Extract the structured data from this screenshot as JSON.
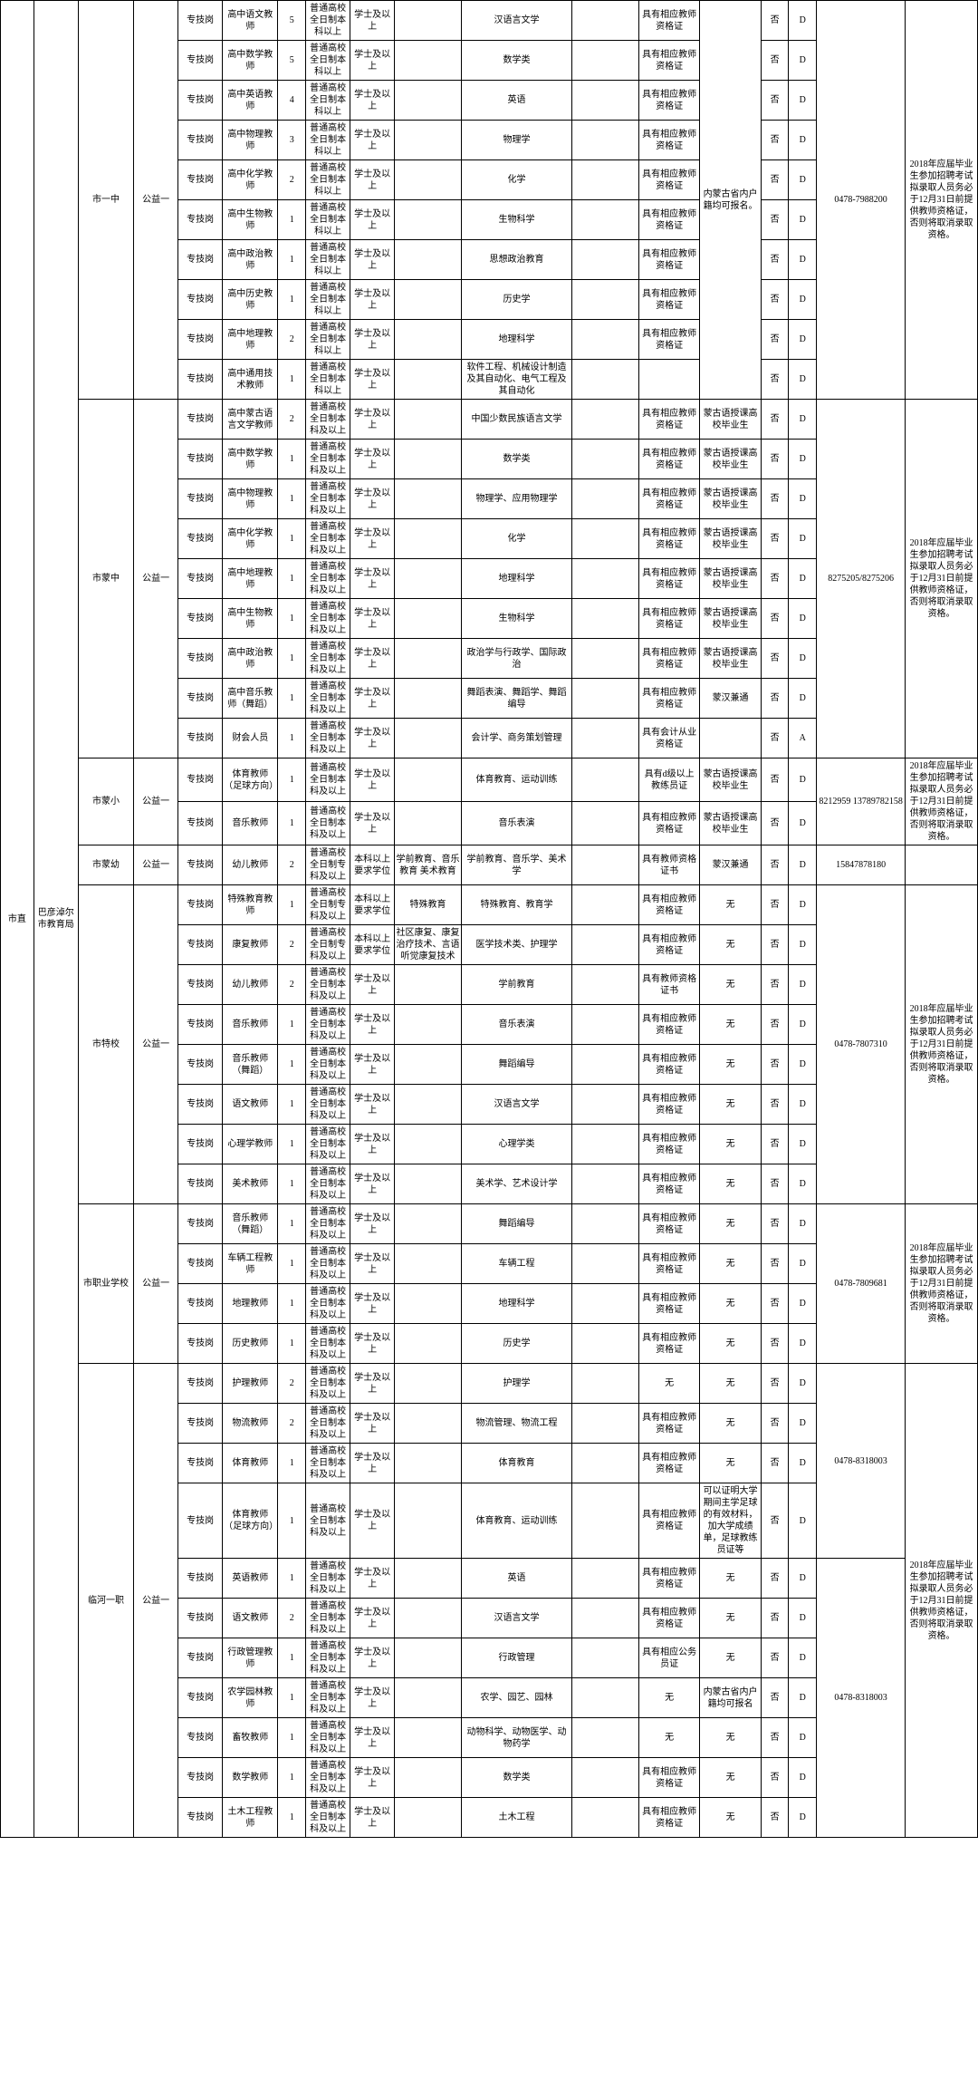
{
  "region_col1": "市直",
  "region_col2": "巴彦淖尔市教育局",
  "units": [
    {
      "unit": "市一中",
      "welfare": "公益一",
      "phone": "0478-7988200",
      "other_shared": "内蒙古省内户籍均可报名。",
      "note": "2018年应届毕业生参加招聘考试拟录取人员务必于12月31日前提供教师资格证，否则将取消录取资格。",
      "rows": [
        {
          "type": "专技岗",
          "pos": "高中语文教师",
          "cnt": "5",
          "edu": "普通高校全日制本科以上",
          "deg": "学士及以上",
          "pre": "",
          "major": "汉语言文学",
          "gap": "",
          "cert": "具有相应教师资格证",
          "yn": "否",
          "cat": "D"
        },
        {
          "type": "专技岗",
          "pos": "高中数学教师",
          "cnt": "5",
          "edu": "普通高校全日制本科以上",
          "deg": "学士及以上",
          "pre": "",
          "major": "数学类",
          "gap": "",
          "cert": "具有相应教师资格证",
          "yn": "否",
          "cat": "D"
        },
        {
          "type": "专技岗",
          "pos": "高中英语教师",
          "cnt": "4",
          "edu": "普通高校全日制本科以上",
          "deg": "学士及以上",
          "pre": "",
          "major": "英语",
          "gap": "",
          "cert": "具有相应教师资格证",
          "yn": "否",
          "cat": "D"
        },
        {
          "type": "专技岗",
          "pos": "高中物理教师",
          "cnt": "3",
          "edu": "普通高校全日制本科以上",
          "deg": "学士及以上",
          "pre": "",
          "major": "物理学",
          "gap": "",
          "cert": "具有相应教师资格证",
          "yn": "否",
          "cat": "D"
        },
        {
          "type": "专技岗",
          "pos": "高中化学教师",
          "cnt": "2",
          "edu": "普通高校全日制本科以上",
          "deg": "学士及以上",
          "pre": "",
          "major": "化学",
          "gap": "",
          "cert": "具有相应教师资格证",
          "yn": "否",
          "cat": "D"
        },
        {
          "type": "专技岗",
          "pos": "高中生物教师",
          "cnt": "1",
          "edu": "普通高校全日制本科以上",
          "deg": "学士及以上",
          "pre": "",
          "major": "生物科学",
          "gap": "",
          "cert": "具有相应教师资格证",
          "yn": "否",
          "cat": "D"
        },
        {
          "type": "专技岗",
          "pos": "高中政治教师",
          "cnt": "1",
          "edu": "普通高校全日制本科以上",
          "deg": "学士及以上",
          "pre": "",
          "major": "思想政治教育",
          "gap": "",
          "cert": "具有相应教师资格证",
          "yn": "否",
          "cat": "D"
        },
        {
          "type": "专技岗",
          "pos": "高中历史教师",
          "cnt": "1",
          "edu": "普通高校全日制本科以上",
          "deg": "学士及以上",
          "pre": "",
          "major": "历史学",
          "gap": "",
          "cert": "具有相应教师资格证",
          "yn": "否",
          "cat": "D"
        },
        {
          "type": "专技岗",
          "pos": "高中地理教师",
          "cnt": "2",
          "edu": "普通高校全日制本科以上",
          "deg": "学士及以上",
          "pre": "",
          "major": "地理科学",
          "gap": "",
          "cert": "具有相应教师资格证",
          "yn": "否",
          "cat": "D"
        },
        {
          "type": "专技岗",
          "pos": "高中通用技术教师",
          "cnt": "1",
          "edu": "普通高校全日制本科以上",
          "deg": "学士及以上",
          "pre": "",
          "major": "软件工程、机械设计制造及其自动化、电气工程及其自动化",
          "gap": "",
          "cert": "",
          "yn": "否",
          "cat": "D"
        }
      ]
    },
    {
      "unit": "市蒙中",
      "welfare": "公益一",
      "phone": "8275205/8275206",
      "note": "2018年应届毕业生参加招聘考试拟录取人员务必于12月31日前提供教师资格证，否则将取消录取资格。",
      "rows": [
        {
          "type": "专技岗",
          "pos": "高中蒙古语言文学教师",
          "cnt": "2",
          "edu": "普通高校全日制本科及以上",
          "deg": "学士及以上",
          "pre": "",
          "major": "中国少数民族语言文学",
          "gap": "",
          "cert": "具有相应教师资格证",
          "other": "蒙古语授课高校毕业生",
          "yn": "否",
          "cat": "D"
        },
        {
          "type": "专技岗",
          "pos": "高中数学教师",
          "cnt": "1",
          "edu": "普通高校全日制本科及以上",
          "deg": "学士及以上",
          "pre": "",
          "major": "数学类",
          "gap": "",
          "cert": "具有相应教师资格证",
          "other": "蒙古语授课高校毕业生",
          "yn": "否",
          "cat": "D"
        },
        {
          "type": "专技岗",
          "pos": "高中物理教师",
          "cnt": "1",
          "edu": "普通高校全日制本科及以上",
          "deg": "学士及以上",
          "pre": "",
          "major": "物理学、应用物理学",
          "gap": "",
          "cert": "具有相应教师资格证",
          "other": "蒙古语授课高校毕业生",
          "yn": "否",
          "cat": "D"
        },
        {
          "type": "专技岗",
          "pos": "高中化学教师",
          "cnt": "1",
          "edu": "普通高校全日制本科及以上",
          "deg": "学士及以上",
          "pre": "",
          "major": "化学",
          "gap": "",
          "cert": "具有相应教师资格证",
          "other": "蒙古语授课高校毕业生",
          "yn": "否",
          "cat": "D"
        },
        {
          "type": "专技岗",
          "pos": "高中地理教师",
          "cnt": "1",
          "edu": "普通高校全日制本科及以上",
          "deg": "学士及以上",
          "pre": "",
          "major": "地理科学",
          "gap": "",
          "cert": "具有相应教师资格证",
          "other": "蒙古语授课高校毕业生",
          "yn": "否",
          "cat": "D"
        },
        {
          "type": "专技岗",
          "pos": "高中生物教师",
          "cnt": "1",
          "edu": "普通高校全日制本科及以上",
          "deg": "学士及以上",
          "pre": "",
          "major": "生物科学",
          "gap": "",
          "cert": "具有相应教师资格证",
          "other": "蒙古语授课高校毕业生",
          "yn": "否",
          "cat": "D"
        },
        {
          "type": "专技岗",
          "pos": "高中政治教师",
          "cnt": "1",
          "edu": "普通高校全日制本科及以上",
          "deg": "学士及以上",
          "pre": "",
          "major": "政治学与行政学、国际政治",
          "gap": "",
          "cert": "具有相应教师资格证",
          "other": "蒙古语授课高校毕业生",
          "yn": "否",
          "cat": "D"
        },
        {
          "type": "专技岗",
          "pos": "高中音乐教师（舞蹈）",
          "cnt": "1",
          "edu": "普通高校全日制本科及以上",
          "deg": "学士及以上",
          "pre": "",
          "major": "舞蹈表演、舞蹈学、舞蹈编导",
          "gap": "",
          "cert": "具有相应教师资格证",
          "other": "蒙汉兼通",
          "yn": "否",
          "cat": "D"
        },
        {
          "type": "专技岗",
          "pos": "财会人员",
          "cnt": "1",
          "edu": "普通高校全日制本科及以上",
          "deg": "学士及以上",
          "pre": "",
          "major": "会计学、商务策划管理",
          "gap": "",
          "cert": "具有会计从业资格证",
          "other": "",
          "yn": "否",
          "cat": "A"
        }
      ]
    },
    {
      "unit": "市蒙小",
      "welfare": "公益一",
      "phone": "8212959\n13789782158",
      "note": "2018年应届毕业生参加招聘考试拟录取人员务必于12月31日前提供教师资格证，否则将取消录取资格。",
      "rows": [
        {
          "type": "专技岗",
          "pos": "体育教师（足球方向）",
          "cnt": "1",
          "edu": "普通高校全日制本科及以上",
          "deg": "学士及以上",
          "pre": "",
          "major": "体育教育、运动训练",
          "gap": "",
          "cert": "具有d级以上教练员证",
          "other": "蒙古语授课高校毕业生",
          "yn": "否",
          "cat": "D"
        },
        {
          "type": "专技岗",
          "pos": "音乐教师",
          "cnt": "1",
          "edu": "普通高校全日制本科及以上",
          "deg": "学士及以上",
          "pre": "",
          "major": "音乐表演",
          "gap": "",
          "cert": "具有相应教师资格证",
          "other": "蒙古语授课高校毕业生",
          "yn": "否",
          "cat": "D"
        }
      ]
    },
    {
      "unit": "市蒙幼",
      "welfare": "公益一",
      "phone": "15847878180",
      "note": "",
      "rows": [
        {
          "type": "专技岗",
          "pos": "幼儿教师",
          "cnt": "2",
          "edu": "普通高校全日制专科及以上",
          "deg": "本科以上要求学位",
          "pre": "学前教育、音乐教育\n美术教育",
          "major": "学前教育、音乐学、美术学",
          "gap": "",
          "cert": "具有教师资格证书",
          "other": "蒙汉兼通",
          "yn": "否",
          "cat": "D"
        }
      ]
    },
    {
      "unit": "市特校",
      "welfare": "公益一",
      "phone": "0478-7807310",
      "note": "2018年应届毕业生参加招聘考试拟录取人员务必于12月31日前提供教师资格证，否则将取消录取资格。",
      "rows": [
        {
          "type": "专技岗",
          "pos": "特殊教育教师",
          "cnt": "1",
          "edu": "普通高校全日制专科及以上",
          "deg": "本科以上要求学位",
          "pre": "特殊教育",
          "major": "特殊教育、教育学",
          "gap": "",
          "cert": "具有相应教师资格证",
          "other": "无",
          "yn": "否",
          "cat": "D"
        },
        {
          "type": "专技岗",
          "pos": "康复教师",
          "cnt": "2",
          "edu": "普通高校全日制专科及以上",
          "deg": "本科以上要求学位",
          "pre": "社区康复、康复治疗技术、言语听觉康复技术",
          "major": "医学技术类、护理学",
          "gap": "",
          "cert": "具有相应教师资格证",
          "other": "无",
          "yn": "否",
          "cat": "D"
        },
        {
          "type": "专技岗",
          "pos": "幼儿教师",
          "cnt": "2",
          "edu": "普通高校全日制本科及以上",
          "deg": "学士及以上",
          "pre": "",
          "major": "学前教育",
          "gap": "",
          "cert": "具有教师资格证书",
          "other": "无",
          "yn": "否",
          "cat": "D"
        },
        {
          "type": "专技岗",
          "pos": "音乐教师",
          "cnt": "1",
          "edu": "普通高校全日制本科及以上",
          "deg": "学士及以上",
          "pre": "",
          "major": "音乐表演",
          "gap": "",
          "cert": "具有相应教师资格证",
          "other": "无",
          "yn": "否",
          "cat": "D"
        },
        {
          "type": "专技岗",
          "pos": "音乐教师（舞蹈）",
          "cnt": "1",
          "edu": "普通高校全日制本科及以上",
          "deg": "学士及以上",
          "pre": "",
          "major": "舞蹈编导",
          "gap": "",
          "cert": "具有相应教师资格证",
          "other": "无",
          "yn": "否",
          "cat": "D"
        },
        {
          "type": "专技岗",
          "pos": "语文教师",
          "cnt": "1",
          "edu": "普通高校全日制本科及以上",
          "deg": "学士及以上",
          "pre": "",
          "major": "汉语言文学",
          "gap": "",
          "cert": "具有相应教师资格证",
          "other": "无",
          "yn": "否",
          "cat": "D"
        },
        {
          "type": "专技岗",
          "pos": "心理学教师",
          "cnt": "1",
          "edu": "普通高校全日制本科及以上",
          "deg": "学士及以上",
          "pre": "",
          "major": "心理学类",
          "gap": "",
          "cert": "具有相应教师资格证",
          "other": "无",
          "yn": "否",
          "cat": "D"
        },
        {
          "type": "专技岗",
          "pos": "美术教师",
          "cnt": "1",
          "edu": "普通高校全日制本科及以上",
          "deg": "学士及以上",
          "pre": "",
          "major": "美术学、艺术设计学",
          "gap": "",
          "cert": "具有相应教师资格证",
          "other": "无",
          "yn": "否",
          "cat": "D"
        }
      ]
    },
    {
      "unit": "市职业学校",
      "welfare": "公益一",
      "phone": "0478-7809681",
      "note": "2018年应届毕业生参加招聘考试拟录取人员务必于12月31日前提供教师资格证，否则将取消录取资格。",
      "rows": [
        {
          "type": "专技岗",
          "pos": "音乐教师（舞蹈）",
          "cnt": "1",
          "edu": "普通高校全日制本科及以上",
          "deg": "学士及以上",
          "pre": "",
          "major": "舞蹈编导",
          "gap": "",
          "cert": "具有相应教师资格证",
          "other": "无",
          "yn": "否",
          "cat": "D"
        },
        {
          "type": "专技岗",
          "pos": "车辆工程教师",
          "cnt": "1",
          "edu": "普通高校全日制本科及以上",
          "deg": "学士及以上",
          "pre": "",
          "major": "车辆工程",
          "gap": "",
          "cert": "具有相应教师资格证",
          "other": "无",
          "yn": "否",
          "cat": "D"
        },
        {
          "type": "专技岗",
          "pos": "地理教师",
          "cnt": "1",
          "edu": "普通高校全日制本科及以上",
          "deg": "学士及以上",
          "pre": "",
          "major": "地理科学",
          "gap": "",
          "cert": "具有相应教师资格证",
          "other": "无",
          "yn": "否",
          "cat": "D"
        },
        {
          "type": "专技岗",
          "pos": "历史教师",
          "cnt": "1",
          "edu": "普通高校全日制本科及以上",
          "deg": "学士及以上",
          "pre": "",
          "major": "历史学",
          "gap": "",
          "cert": "具有相应教师资格证",
          "other": "无",
          "yn": "否",
          "cat": "D"
        }
      ]
    },
    {
      "unit": "临河一职",
      "welfare": "公益一",
      "phone1": "0478-8318003",
      "phone2": "0478-8318003",
      "phone1_rows": 4,
      "phone2_rows": 7,
      "note": "2018年应届毕业生参加招聘考试拟录取人员务必于12月31日前提供教师资格证，否则将取消录取资格。",
      "rows": [
        {
          "type": "专技岗",
          "pos": "护理教师",
          "cnt": "2",
          "edu": "普通高校全日制本科及以上",
          "deg": "学士及以上",
          "pre": "",
          "major": "护理学",
          "gap": "",
          "cert": "无",
          "other": "无",
          "yn": "否",
          "cat": "D"
        },
        {
          "type": "专技岗",
          "pos": "物流教师",
          "cnt": "2",
          "edu": "普通高校全日制本科及以上",
          "deg": "学士及以上",
          "pre": "",
          "major": "物流管理、物流工程",
          "gap": "",
          "cert": "具有相应教师资格证",
          "other": "无",
          "yn": "否",
          "cat": "D"
        },
        {
          "type": "专技岗",
          "pos": "体育教师",
          "cnt": "1",
          "edu": "普通高校全日制本科及以上",
          "deg": "学士及以上",
          "pre": "",
          "major": "体育教育",
          "gap": "",
          "cert": "具有相应教师资格证",
          "other": "无",
          "yn": "否",
          "cat": "D"
        },
        {
          "type": "专技岗",
          "pos": "体育教师（足球方向）",
          "cnt": "1",
          "edu": "普通高校全日制本科及以上",
          "deg": "学士及以上",
          "pre": "",
          "major": "体育教育、运动训练",
          "gap": "",
          "cert": "具有相应教师资格证",
          "other": "可以证明大学期间主学足球的有效材料，加大学成绩单，足球教练员证等",
          "yn": "否",
          "cat": "D"
        },
        {
          "type": "专技岗",
          "pos": "英语教师",
          "cnt": "1",
          "edu": "普通高校全日制本科及以上",
          "deg": "学士及以上",
          "pre": "",
          "major": "英语",
          "gap": "",
          "cert": "具有相应教师资格证",
          "other": "无",
          "yn": "否",
          "cat": "D"
        },
        {
          "type": "专技岗",
          "pos": "语文教师",
          "cnt": "2",
          "edu": "普通高校全日制本科及以上",
          "deg": "学士及以上",
          "pre": "",
          "major": "汉语言文学",
          "gap": "",
          "cert": "具有相应教师资格证",
          "other": "无",
          "yn": "否",
          "cat": "D"
        },
        {
          "type": "专技岗",
          "pos": "行政管理教师",
          "cnt": "1",
          "edu": "普通高校全日制本科及以上",
          "deg": "学士及以上",
          "pre": "",
          "major": "行政管理",
          "gap": "",
          "cert": "具有相应公务员证",
          "other": "无",
          "yn": "否",
          "cat": "D"
        },
        {
          "type": "专技岗",
          "pos": "农学园林教师",
          "cnt": "1",
          "edu": "普通高校全日制本科及以上",
          "deg": "学士及以上",
          "pre": "",
          "major": "农学、园艺、园林",
          "gap": "",
          "cert": "无",
          "other": "内蒙古省内户籍均可报名",
          "yn": "否",
          "cat": "D"
        },
        {
          "type": "专技岗",
          "pos": "畜牧教师",
          "cnt": "1",
          "edu": "普通高校全日制本科及以上",
          "deg": "学士及以上",
          "pre": "",
          "major": "动物科学、动物医学、动物药学",
          "gap": "",
          "cert": "无",
          "other": "无",
          "yn": "否",
          "cat": "D"
        },
        {
          "type": "专技岗",
          "pos": "数学教师",
          "cnt": "1",
          "edu": "普通高校全日制本科及以上",
          "deg": "学士及以上",
          "pre": "",
          "major": "数学类",
          "gap": "",
          "cert": "具有相应教师资格证",
          "other": "无",
          "yn": "否",
          "cat": "D"
        },
        {
          "type": "专技岗",
          "pos": "土木工程教师",
          "cnt": "1",
          "edu": "普通高校全日制本科及以上",
          "deg": "学士及以上",
          "pre": "",
          "major": "土木工程",
          "gap": "",
          "cert": "具有相应教师资格证",
          "other": "无",
          "yn": "否",
          "cat": "D"
        }
      ]
    }
  ]
}
